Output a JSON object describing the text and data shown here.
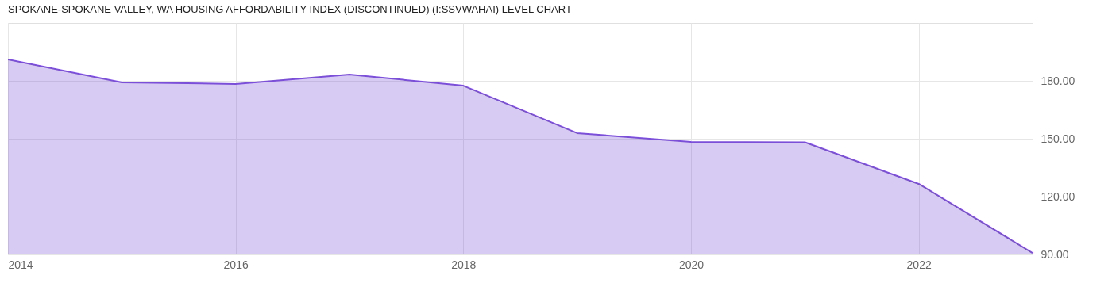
{
  "chart_data": {
    "type": "area",
    "title": "SPOKANE-SPOKANE VALLEY, WA HOUSING AFFORDABILITY INDEX (DISCONTINUED) (I:SSVWAHAI) LEVEL CHART",
    "x": [
      2014,
      2015,
      2016,
      2017,
      2018,
      2019,
      2020,
      2021,
      2022,
      2023
    ],
    "series": [
      {
        "color": "#7b4fd8",
        "values": [
          191.1,
          179.2,
          178.4,
          183.3,
          177.5,
          152.9,
          148.4,
          148.2,
          126.6,
          90.8
        ]
      }
    ],
    "xlim": [
      2014,
      2023
    ],
    "xticks": [
      2014,
      2016,
      2018,
      2020,
      2022
    ],
    "ylim": [
      90,
      210
    ],
    "yticks": [
      {
        "value": 90,
        "label": "90.00"
      },
      {
        "value": 120,
        "label": "120.00"
      },
      {
        "value": 150,
        "label": "150.00"
      },
      {
        "value": 180,
        "label": "180.00"
      }
    ],
    "grid": true
  }
}
